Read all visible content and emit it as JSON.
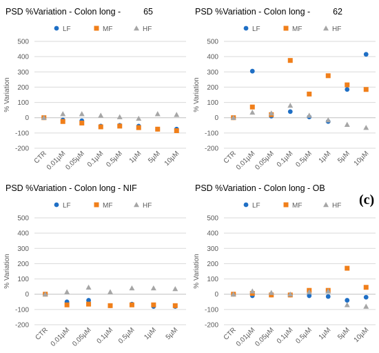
{
  "figure": {
    "panel_label": "(c)",
    "colors": {
      "LF": "#1f6fc5",
      "MF": "#f07f1a",
      "HF": "#a6a6a6",
      "grid": "#d9d9d9",
      "text": "#595959",
      "title": "#000000"
    }
  },
  "chart_data": [
    {
      "type": "scatter",
      "title": "PSD %Variation - Colon long -",
      "title_suffix": "65",
      "ylabel": "% Variation",
      "categories": [
        "CTR",
        "0.01µM",
        "0.05µM",
        "0.1µM",
        "0.5µM",
        "1µM",
        "5µM",
        "10µM"
      ],
      "ylim": [
        -200,
        500
      ],
      "yticks": [
        -200,
        -100,
        0,
        100,
        200,
        300,
        400,
        500
      ],
      "grid": true,
      "legend": "top",
      "series": [
        {
          "name": "LF",
          "marker": "circle",
          "values": [
            0,
            -15,
            -20,
            -55,
            -50,
            -55,
            -75,
            -75
          ]
        },
        {
          "name": "MF",
          "marker": "square",
          "values": [
            0,
            -25,
            -35,
            -60,
            -55,
            -65,
            -75,
            -85
          ]
        },
        {
          "name": "HF",
          "marker": "triangle",
          "values": [
            0,
            25,
            25,
            15,
            5,
            -5,
            25,
            20
          ]
        }
      ]
    },
    {
      "type": "scatter",
      "title": "PSD %Variation - Colon long -",
      "title_suffix": "62",
      "ylabel": "% Variation",
      "categories": [
        "CTR",
        "0.01µM",
        "0.05µM",
        "0.1µM",
        "0.5µM",
        "1µM",
        "5µM",
        "10µM"
      ],
      "ylim": [
        -200,
        500
      ],
      "yticks": [
        -200,
        -100,
        0,
        100,
        200,
        300,
        400,
        500
      ],
      "grid": true,
      "legend": "top",
      "series": [
        {
          "name": "LF",
          "marker": "circle",
          "values": [
            0,
            305,
            10,
            40,
            5,
            -25,
            185,
            415
          ]
        },
        {
          "name": "MF",
          "marker": "square",
          "values": [
            0,
            70,
            20,
            375,
            155,
            275,
            215,
            185
          ]
        },
        {
          "name": "HF",
          "marker": "triangle",
          "values": [
            0,
            35,
            30,
            80,
            15,
            -15,
            -45,
            -65
          ]
        }
      ]
    },
    {
      "type": "scatter",
      "title": "PSD %Variation - Colon long - NIF",
      "title_suffix": "",
      "ylabel": "% Variation",
      "categories": [
        "CTR",
        "0.01µM",
        "0.05µM",
        "0.1µM",
        "0.5µM",
        "1µM",
        "5µM"
      ],
      "ylim": [
        -200,
        500
      ],
      "yticks": [
        -200,
        -100,
        0,
        100,
        200,
        300,
        400,
        500
      ],
      "grid": true,
      "legend": "top",
      "series": [
        {
          "name": "LF",
          "marker": "circle",
          "values": [
            0,
            -50,
            -40,
            -75,
            -65,
            -80,
            -80
          ]
        },
        {
          "name": "MF",
          "marker": "square",
          "values": [
            0,
            -70,
            -65,
            -75,
            -70,
            -70,
            -75
          ]
        },
        {
          "name": "HF",
          "marker": "triangle",
          "values": [
            0,
            15,
            45,
            15,
            40,
            40,
            35
          ]
        }
      ]
    },
    {
      "type": "scatter",
      "title": "PSD %Variation - Colon long - OB",
      "title_suffix": "",
      "ylabel": "% Variation",
      "categories": [
        "CTR",
        "0.01µM",
        "0.05µM",
        "0.1µM",
        "0.5µM",
        "1µM",
        "5µM",
        "10µM"
      ],
      "ylim": [
        -200,
        500
      ],
      "yticks": [
        -200,
        -100,
        0,
        100,
        200,
        300,
        400,
        500
      ],
      "grid": true,
      "legend": "top",
      "series": [
        {
          "name": "LF",
          "marker": "circle",
          "values": [
            0,
            -10,
            -5,
            -5,
            -10,
            -15,
            -40,
            -20
          ]
        },
        {
          "name": "MF",
          "marker": "square",
          "values": [
            0,
            5,
            -5,
            -5,
            25,
            25,
            170,
            45
          ]
        },
        {
          "name": "HF",
          "marker": "triangle",
          "values": [
            0,
            20,
            10,
            0,
            15,
            20,
            -70,
            -80
          ]
        }
      ]
    }
  ]
}
